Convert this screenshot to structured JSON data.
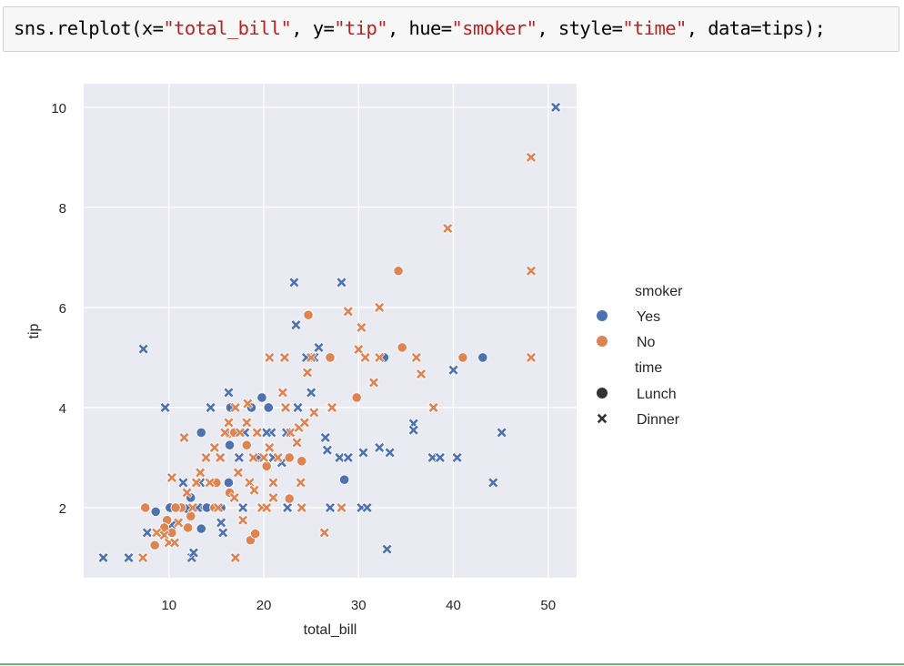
{
  "code_cell": {
    "parts": [
      {
        "text": "sns.relplot(x=",
        "type": "code"
      },
      {
        "text": "\"total_bill\"",
        "type": "str"
      },
      {
        "text": ", y=",
        "type": "code"
      },
      {
        "text": "\"tip\"",
        "type": "str"
      },
      {
        "text": ", hue=",
        "type": "code"
      },
      {
        "text": "\"smoker\"",
        "type": "str"
      },
      {
        "text": ", style=",
        "type": "code"
      },
      {
        "text": "\"time\"",
        "type": "str"
      },
      {
        "text": ", data=tips);",
        "type": "code"
      }
    ]
  },
  "colors": {
    "yes": "#4c72b0",
    "no": "#dd8452",
    "plot_bg": "#eaeaf2",
    "grid": "#ffffff",
    "text": "#262626",
    "legend_style_marker": "#333333"
  },
  "chart_data": {
    "type": "scatter",
    "title": "",
    "xlabel": "total_bill",
    "ylabel": "tip",
    "xlim": [
      1.0,
      53.0
    ],
    "ylim": [
      0.6,
      10.47
    ],
    "xticks": [
      10,
      20,
      30,
      40,
      50
    ],
    "yticks": [
      2,
      4,
      6,
      8,
      10
    ],
    "grid": true,
    "legend_position": "right",
    "legend": {
      "hue_title": "smoker",
      "hue_entries": [
        {
          "label": "Yes",
          "color": "#4c72b0"
        },
        {
          "label": "No",
          "color": "#dd8452"
        }
      ],
      "style_title": "time",
      "style_entries": [
        {
          "label": "Lunch",
          "marker": "circle"
        },
        {
          "label": "Dinner",
          "marker": "x"
        }
      ]
    },
    "series": [
      {
        "name": "Yes / Lunch",
        "smoker": "Yes",
        "time": "Lunch",
        "marker": "circle",
        "color": "#4c72b0",
        "points": [
          [
            8.6,
            1.92
          ],
          [
            10.1,
            2.0
          ],
          [
            13.0,
            2.0
          ],
          [
            13.3,
            2.0
          ],
          [
            15.5,
            2.0
          ],
          [
            13.4,
            1.58
          ],
          [
            13.4,
            3.5
          ],
          [
            16.3,
            2.5
          ],
          [
            16.4,
            3.25
          ],
          [
            16.5,
            4.0
          ],
          [
            18.7,
            4.0
          ],
          [
            19.5,
            3.0
          ],
          [
            19.8,
            4.2
          ],
          [
            20.5,
            4.0
          ],
          [
            12.3,
            2.2
          ],
          [
            28.5,
            2.56
          ],
          [
            32.7,
            5.0
          ],
          [
            43.1,
            5.0
          ],
          [
            11.9,
            1.98
          ],
          [
            14.0,
            2.0
          ]
        ]
      },
      {
        "name": "Yes / Dinner",
        "smoker": "Yes",
        "time": "Dinner",
        "marker": "x",
        "color": "#4c72b0",
        "points": [
          [
            3.07,
            1.0
          ],
          [
            5.75,
            1.0
          ],
          [
            7.3,
            5.17
          ],
          [
            7.7,
            1.5
          ],
          [
            9.6,
            4.0
          ],
          [
            10.3,
            1.66
          ],
          [
            11.5,
            2.5
          ],
          [
            12.4,
            1.0
          ],
          [
            12.6,
            1.1
          ],
          [
            13.3,
            2.5
          ],
          [
            14.4,
            4.0
          ],
          [
            15.5,
            3.0
          ],
          [
            15.5,
            1.7
          ],
          [
            15.7,
            1.5
          ],
          [
            16.3,
            4.3
          ],
          [
            17.4,
            3.0
          ],
          [
            17.8,
            2.0
          ],
          [
            18.0,
            3.5
          ],
          [
            20.8,
            3.5
          ],
          [
            21.9,
            2.9
          ],
          [
            22.4,
            3.5
          ],
          [
            22.5,
            2.0
          ],
          [
            23.2,
            6.5
          ],
          [
            23.4,
            5.65
          ],
          [
            23.6,
            4.0
          ],
          [
            24.0,
            2.0
          ],
          [
            25.3,
            5.0
          ],
          [
            25.8,
            5.2
          ],
          [
            25.0,
            4.3
          ],
          [
            26.5,
            3.4
          ],
          [
            26.7,
            3.15
          ],
          [
            27.0,
            2.0
          ],
          [
            28.2,
            6.5
          ],
          [
            28.0,
            3.0
          ],
          [
            28.9,
            3.0
          ],
          [
            30.5,
            3.1
          ],
          [
            30.3,
            2.0
          ],
          [
            30.9,
            2.0
          ],
          [
            32.2,
            3.2
          ],
          [
            33.3,
            3.1
          ],
          [
            33.0,
            1.17
          ],
          [
            35.8,
            3.68
          ],
          [
            35.8,
            3.55
          ],
          [
            37.8,
            3.0
          ],
          [
            38.6,
            3.0
          ],
          [
            40.0,
            4.75
          ],
          [
            40.4,
            3.0
          ],
          [
            44.2,
            2.5
          ],
          [
            45.1,
            3.5
          ],
          [
            50.8,
            10.0
          ],
          [
            21.0,
            3.0
          ],
          [
            20.3,
            3.5
          ],
          [
            13.0,
            2.0
          ],
          [
            24.5,
            5.0
          ]
        ]
      },
      {
        "name": "No / Lunch",
        "smoker": "No",
        "time": "Lunch",
        "marker": "circle",
        "color": "#dd8452",
        "points": [
          [
            7.5,
            2.0
          ],
          [
            8.5,
            1.25
          ],
          [
            9.8,
            1.75
          ],
          [
            10.3,
            1.5
          ],
          [
            11.3,
            2.0
          ],
          [
            12.3,
            1.83
          ],
          [
            12.0,
            1.6
          ],
          [
            14.8,
            2.0
          ],
          [
            16.3,
            3.48
          ],
          [
            16.9,
            3.5
          ],
          [
            18.2,
            3.25
          ],
          [
            16.4,
            2.3
          ],
          [
            18.6,
            1.35
          ],
          [
            19.1,
            1.48
          ],
          [
            20.3,
            2.83
          ],
          [
            22.7,
            2.18
          ],
          [
            22.7,
            3.0
          ],
          [
            24.0,
            2.93
          ],
          [
            24.7,
            5.85
          ],
          [
            27.0,
            5.0
          ],
          [
            29.8,
            4.2
          ],
          [
            34.2,
            6.73
          ],
          [
            34.6,
            5.2
          ],
          [
            41.0,
            5.0
          ],
          [
            10.7,
            2.0
          ],
          [
            9.5,
            1.6
          ],
          [
            15.0,
            2.5
          ]
        ]
      },
      {
        "name": "No / Dinner",
        "smoker": "No",
        "time": "Dinner",
        "marker": "x",
        "color": "#dd8452",
        "points": [
          [
            7.25,
            1.0
          ],
          [
            8.7,
            1.5
          ],
          [
            9.5,
            1.45
          ],
          [
            10.0,
            1.3
          ],
          [
            10.3,
            2.6
          ],
          [
            10.6,
            1.3
          ],
          [
            11.0,
            1.7
          ],
          [
            11.6,
            3.4
          ],
          [
            11.9,
            2.3
          ],
          [
            12.5,
            2.0
          ],
          [
            12.8,
            2.5
          ],
          [
            13.3,
            2.7
          ],
          [
            13.9,
            3.0
          ],
          [
            14.3,
            2.5
          ],
          [
            14.8,
            3.2
          ],
          [
            15.2,
            2.0
          ],
          [
            15.4,
            3.0
          ],
          [
            16.3,
            3.7
          ],
          [
            16.9,
            2.2
          ],
          [
            17.0,
            1.0
          ],
          [
            17.3,
            2.7
          ],
          [
            17.5,
            3.5
          ],
          [
            17.8,
            1.75
          ],
          [
            18.2,
            3.7
          ],
          [
            18.3,
            4.08
          ],
          [
            18.5,
            2.5
          ],
          [
            19.0,
            2.35
          ],
          [
            19.3,
            3.5
          ],
          [
            19.8,
            2.0
          ],
          [
            20.3,
            2.0
          ],
          [
            20.6,
            5.0
          ],
          [
            20.6,
            3.2
          ],
          [
            21.0,
            2.5
          ],
          [
            21.5,
            3.0
          ],
          [
            22.0,
            4.3
          ],
          [
            22.2,
            5.0
          ],
          [
            22.8,
            3.5
          ],
          [
            23.5,
            3.3
          ],
          [
            23.9,
            2.5
          ],
          [
            23.7,
            3.6
          ],
          [
            24.0,
            2.0
          ],
          [
            24.3,
            3.7
          ],
          [
            24.6,
            4.7
          ],
          [
            25.0,
            5.0
          ],
          [
            25.3,
            3.9
          ],
          [
            26.4,
            1.5
          ],
          [
            27.2,
            4.0
          ],
          [
            28.2,
            2.0
          ],
          [
            28.9,
            5.92
          ],
          [
            30.0,
            5.16
          ],
          [
            30.3,
            5.6
          ],
          [
            30.7,
            5.0
          ],
          [
            31.6,
            4.5
          ],
          [
            32.2,
            5.0
          ],
          [
            32.2,
            6.0
          ],
          [
            36.1,
            5.0
          ],
          [
            36.6,
            4.67
          ],
          [
            37.9,
            4.0
          ],
          [
            39.4,
            7.58
          ],
          [
            48.2,
            9.0
          ],
          [
            48.2,
            6.73
          ],
          [
            48.2,
            5.0
          ],
          [
            21.0,
            2.2
          ],
          [
            18.9,
            3.0
          ],
          [
            12.9,
            2.5
          ],
          [
            15.9,
            3.5
          ],
          [
            22.3,
            4.0
          ],
          [
            17.0,
            4.0
          ],
          [
            20.0,
            3.0
          ]
        ]
      }
    ]
  }
}
